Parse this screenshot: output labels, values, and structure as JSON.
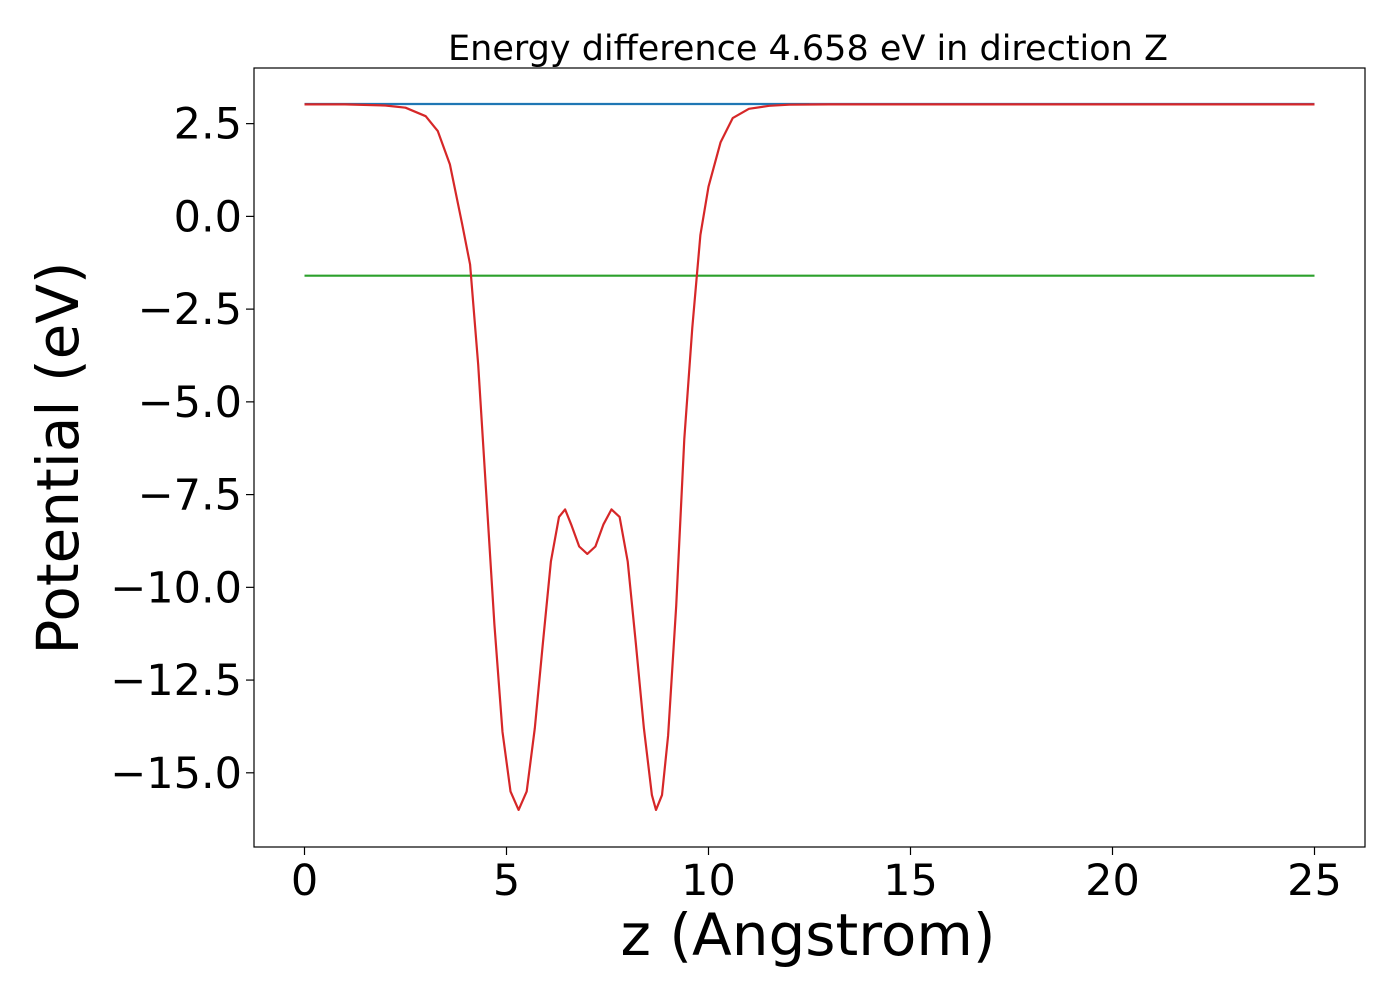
{
  "chart_data": {
    "type": "line",
    "title": "Energy difference 4.658 eV in direction Z",
    "xlabel": "z (Angstrom)",
    "ylabel": "Potential (eV)",
    "xlim": [
      -1.25,
      26.25
    ],
    "ylim": [
      -17.0,
      4.0
    ],
    "xticks": [
      0,
      5,
      10,
      15,
      20,
      25
    ],
    "xtick_labels": [
      "0",
      "5",
      "10",
      "15",
      "20",
      "25"
    ],
    "yticks": [
      2.5,
      0.0,
      -2.5,
      -5.0,
      -7.5,
      -10.0,
      -12.5,
      -15.0
    ],
    "ytick_labels": [
      "2.5",
      "0.0",
      "−2.5",
      "−5.0",
      "−7.5",
      "−10.0",
      "−12.5",
      "−15.0"
    ],
    "grid": false,
    "legend": "none",
    "series": [
      {
        "color": "#1f77b4",
        "x": [
          0,
          25
        ],
        "y": [
          3.03,
          3.03
        ]
      },
      {
        "color": "#2ca02c",
        "x": [
          0,
          25
        ],
        "y": [
          -1.6,
          -1.6
        ]
      },
      {
        "color": "#9467bd",
        "x": [
          12.5,
          25
        ],
        "y": [
          3.02,
          3.02
        ]
      },
      {
        "color": "#d62728",
        "x": [
          0,
          1.0,
          2.0,
          2.5,
          3.0,
          3.3,
          3.6,
          3.9,
          4.1,
          4.3,
          4.5,
          4.7,
          4.9,
          5.1,
          5.3,
          5.5,
          5.7,
          5.9,
          6.1,
          6.3,
          6.45,
          6.6,
          6.8,
          7.0,
          7.2,
          7.4,
          7.6,
          7.8,
          8.0,
          8.2,
          8.4,
          8.6,
          8.7,
          8.85,
          9.0,
          9.2,
          9.4,
          9.6,
          9.8,
          10.0,
          10.3,
          10.6,
          11.0,
          11.5,
          12.0,
          13.0,
          14.0,
          25.0
        ],
        "y": [
          3.02,
          3.02,
          2.99,
          2.93,
          2.7,
          2.3,
          1.4,
          -0.2,
          -1.3,
          -4.0,
          -7.5,
          -11.0,
          -13.9,
          -15.5,
          -16.0,
          -15.5,
          -13.8,
          -11.5,
          -9.3,
          -8.1,
          -7.9,
          -8.3,
          -8.9,
          -9.1,
          -8.9,
          -8.3,
          -7.9,
          -8.1,
          -9.3,
          -11.5,
          -13.8,
          -15.6,
          -16.0,
          -15.6,
          -14.0,
          -10.5,
          -6.0,
          -3.0,
          -0.5,
          0.8,
          2.0,
          2.65,
          2.9,
          2.98,
          3.01,
          3.02,
          3.02,
          3.02
        ]
      }
    ]
  }
}
